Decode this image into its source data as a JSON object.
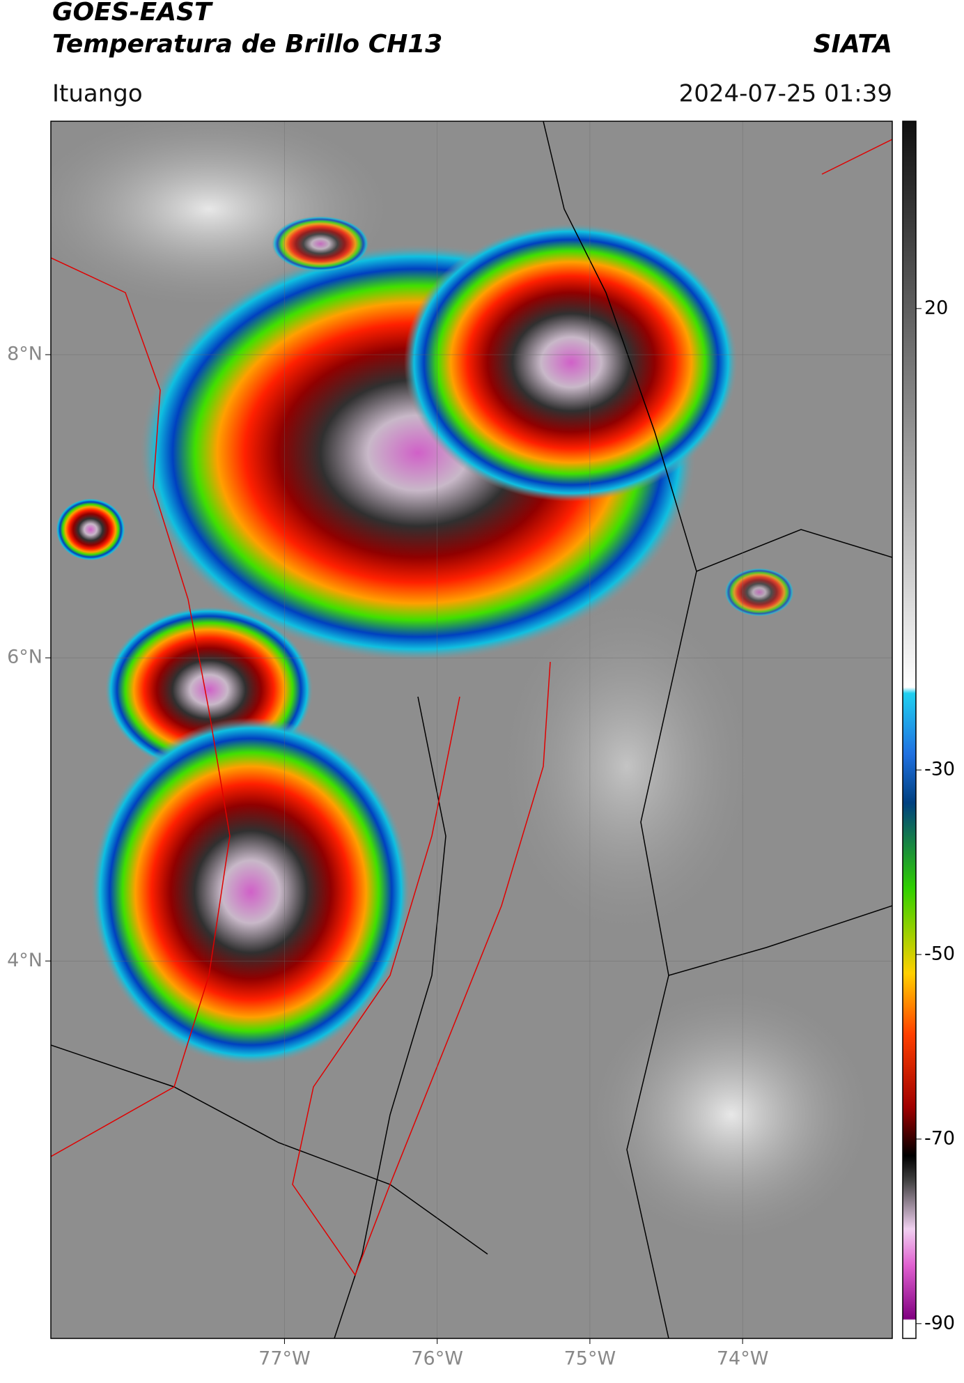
{
  "header": {
    "title": "GOES-EAST",
    "subtitle": "Temperatura de Brillo CH13",
    "source": "SIATA",
    "location": "Ituango",
    "datetime": "2024-07-25 01:39"
  },
  "map": {
    "lonlim": [
      -78.53,
      -73.02
    ],
    "latlim": [
      1.51,
      9.54
    ],
    "lon_ticks": [
      {
        "value": -77,
        "label": "77°W"
      },
      {
        "value": -76,
        "label": "76°W"
      },
      {
        "value": -75,
        "label": "75°W"
      },
      {
        "value": -74,
        "label": "74°W"
      }
    ],
    "lat_ticks": [
      {
        "value": 8,
        "label": "8°N"
      },
      {
        "value": 6,
        "label": "6°N"
      },
      {
        "value": 4,
        "label": "4°N"
      }
    ],
    "grid": true
  },
  "colorbar": {
    "lim": [
      -91.6,
      40.3
    ],
    "ticks": [
      20,
      -30,
      -50,
      -70,
      -90
    ]
  }
}
